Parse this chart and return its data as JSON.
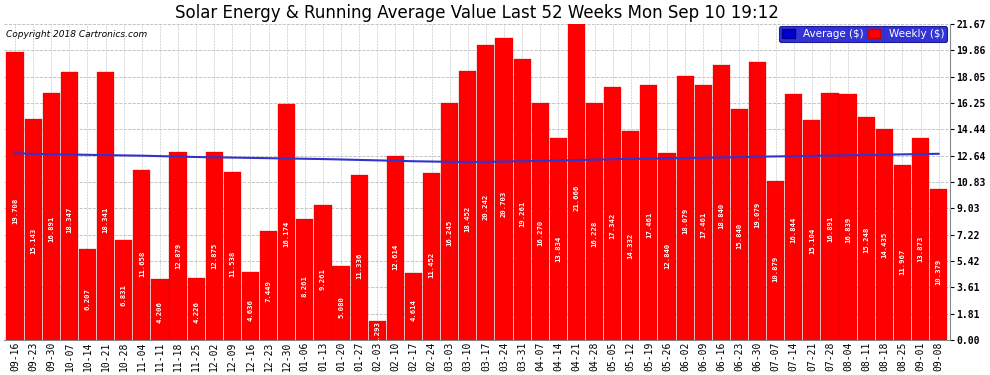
{
  "title": "Solar Energy & Running Average Value Last 52 Weeks Mon Sep 10 19:12",
  "copyright": "Copyright 2018 Cartronics.com",
  "bar_color": "#FF0000",
  "avg_line_color": "#3333CC",
  "background_color": "#FFFFFF",
  "plot_bg_color": "#FFFFFF",
  "grid_color": "#BBBBBB",
  "ytick_labels": [
    "0.00",
    "1.81",
    "3.61",
    "5.42",
    "7.22",
    "9.03",
    "10.83",
    "12.64",
    "14.44",
    "16.25",
    "18.05",
    "19.86",
    "21.67"
  ],
  "ytick_values": [
    0.0,
    1.81,
    3.61,
    5.42,
    7.22,
    9.03,
    10.83,
    12.64,
    14.44,
    16.25,
    18.05,
    19.86,
    21.67
  ],
  "x_labels": [
    "09-16",
    "09-23",
    "09-30",
    "10-07",
    "10-14",
    "10-21",
    "10-28",
    "11-04",
    "11-11",
    "11-18",
    "11-25",
    "12-02",
    "12-09",
    "12-16",
    "12-23",
    "12-30",
    "01-06",
    "01-13",
    "01-20",
    "01-27",
    "02-03",
    "02-10",
    "02-17",
    "02-24",
    "03-03",
    "03-10",
    "03-17",
    "03-24",
    "03-31",
    "04-07",
    "04-14",
    "04-21",
    "04-28",
    "05-05",
    "05-12",
    "05-19",
    "05-26",
    "06-02",
    "06-09",
    "06-16",
    "06-23",
    "06-30",
    "07-07",
    "07-14",
    "07-21",
    "07-28",
    "08-04",
    "08-11",
    "08-18",
    "08-25",
    "09-01",
    "09-08"
  ],
  "weekly_vals": [
    19.708,
    15.143,
    16.891,
    18.347,
    6.207,
    18.341,
    6.831,
    11.658,
    4.206,
    12.879,
    4.226,
    12.875,
    11.538,
    4.636,
    7.449,
    16.174,
    8.261,
    9.261,
    5.08,
    11.336,
    1.293,
    12.614,
    4.614,
    11.452,
    16.245,
    18.452,
    20.242,
    20.703,
    19.261,
    16.27,
    13.834,
    21.666,
    16.228,
    17.342,
    14.332,
    17.461,
    12.84,
    18.079,
    17.461,
    18.84,
    15.84,
    19.079,
    10.879,
    16.844,
    15.104,
    16.891,
    16.839,
    15.248,
    14.435,
    11.967,
    13.873,
    10.379
  ],
  "avg_vals": [
    12.8,
    12.76,
    12.73,
    12.71,
    12.69,
    12.67,
    12.65,
    12.63,
    12.6,
    12.57,
    12.54,
    12.52,
    12.5,
    12.48,
    12.46,
    12.44,
    12.42,
    12.4,
    12.37,
    12.34,
    12.31,
    12.28,
    12.25,
    12.23,
    12.21,
    12.2,
    12.21,
    12.23,
    12.25,
    12.27,
    12.3,
    12.33,
    12.36,
    12.39,
    12.41,
    12.43,
    12.45,
    12.47,
    12.49,
    12.51,
    12.53,
    12.56,
    12.58,
    12.6,
    12.62,
    12.64,
    12.66,
    12.68,
    12.7,
    12.72,
    12.74,
    12.76
  ],
  "ylim": [
    0,
    21.67
  ],
  "title_fontsize": 12,
  "tick_fontsize": 7,
  "label_fontsize": 5.2
}
